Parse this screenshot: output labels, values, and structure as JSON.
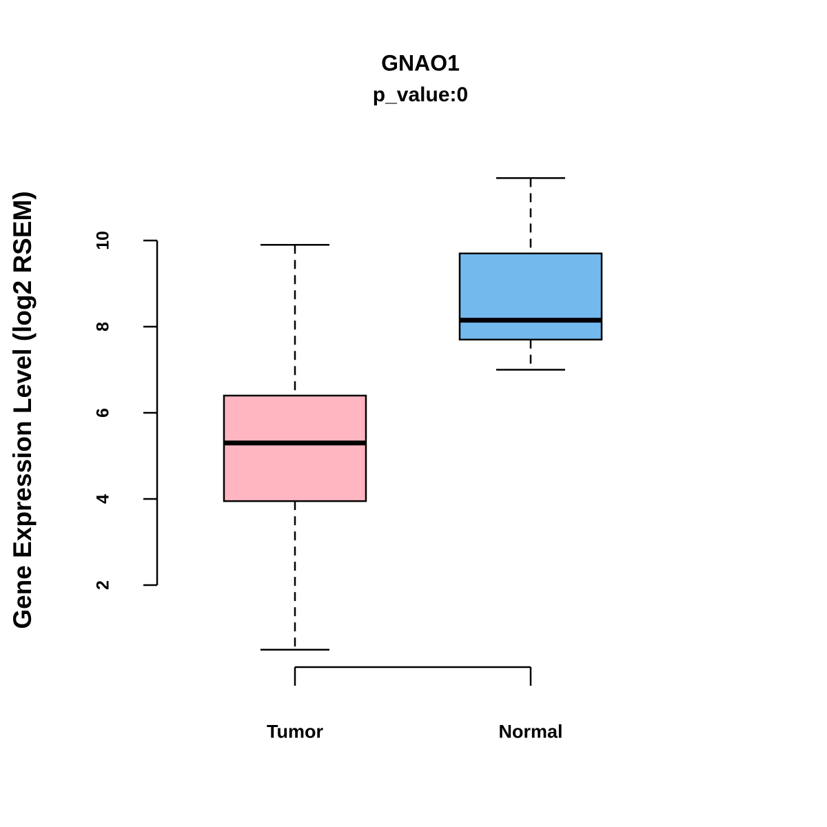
{
  "chart_data": {
    "type": "box",
    "title": "GNAO1",
    "subtitle": "p_value:0",
    "ylabel": "Gene Expression Level (log2 RSEM)",
    "categories": [
      "Tumor",
      "Normal"
    ],
    "yticks": [
      2,
      4,
      6,
      8,
      10
    ],
    "ylim": [
      0.2,
      11.8
    ],
    "grid": false,
    "legend": "none",
    "axis_color": "#000000",
    "series": [
      {
        "name": "Tumor",
        "color": "#FFB6C1",
        "lower_whisker": 0.5,
        "q1": 3.95,
        "median": 5.3,
        "q3": 6.4,
        "upper_whisker": 9.9
      },
      {
        "name": "Normal",
        "color": "#73B9EE",
        "lower_whisker": 7.0,
        "q1": 7.7,
        "median": 8.15,
        "q3": 9.7,
        "upper_whisker": 11.45
      }
    ]
  }
}
